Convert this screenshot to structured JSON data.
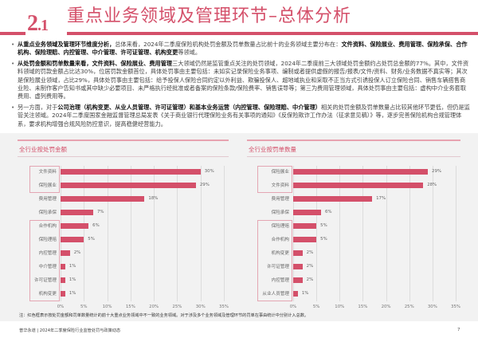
{
  "header": {
    "section_number": "2",
    "section_sub": ".1",
    "title": "重点业务领域及管理环节–总体分析"
  },
  "bullets": [
    {
      "segments": [
        {
          "text": "从重点业务领域及管理环节维度分析，",
          "bold": true
        },
        {
          "text": "总体来看，2024年二季度保险机构处罚金额及罚单数量占比前十的业务领域主要分布在：",
          "bold": false
        },
        {
          "text": "文件资料、保险展业、费用管理、保险承保、合作机构、保险理赔、内控管理、中介管理、许可证管理、机构变更",
          "bold": true
        },
        {
          "text": "等领域。",
          "bold": false
        }
      ]
    },
    {
      "segments": [
        {
          "text": "从处罚金额和罚单数量来看，文件资料、保险展业、费用管理",
          "bold": true
        },
        {
          "text": "三大领域仍然是监管重点关注的处罚领域，2024年二季度前三大领域处罚金额约占处罚总金额的77%。其中，文件资料领域的罚款金额占比达30%，位居罚款金额首位，具体处罚事由主要包括：未如实记录保险业务事项、编制或者提供虚假的报告/报表/文件/资料、财务/业务数据不真实等；其次是保险展业领域，占比29%，具体处罚事由主要包括：给予投保人保险合同约定以外利益、欺骗投保人、超地域执业和采取不正当方式引诱投保人订立保险合同、销售车辆搭售商业险、未制作客户告知书或其中缺少必要项目、未严格执行经批准或者备案的保险条款/保险费率、销售误导等；第三为费用管理领域，具体处罚事由主要包括：虚构中介业务套取费用、虚列费用等。",
          "bold": false
        }
      ]
    },
    {
      "segments": [
        {
          "text": "另一方面，对于",
          "bold": false
        },
        {
          "text": "公司治理（机构变更、从业人员管理、许可证管理）和基本业务运营（内控管理、保险理赔、中介管理）",
          "bold": true
        },
        {
          "text": "相关的处罚金额及罚单数量占比较其他环节更低，但仍是监管关注领域。2024年二季度国家金融监督管理总局发表《关于商业银行代理保险业务有关事项的通知》《反保险欺诈工作办法（征求意见稿）》等，逐步完善保险机构合规管理体系，要求机构增强合规风险防控意识，提高稳健经营能力。",
          "bold": false
        }
      ]
    }
  ],
  "chart_data": [
    {
      "type": "bar",
      "orientation": "horizontal",
      "title": "全行业按处罚金额",
      "categories": [
        "文件资料",
        "保险展业",
        "费用管理",
        "保险承保",
        "合作机构",
        "保险理赔",
        "内控管理",
        "中介管理",
        "许可证管理",
        "机构变更"
      ],
      "values": [
        30,
        29,
        18,
        7,
        6,
        5,
        2,
        1,
        1,
        1
      ],
      "value_labels": [
        "30%",
        "29%",
        "18%",
        "7%",
        "6%",
        "5%",
        "2%",
        "1%",
        "1%",
        "1%"
      ],
      "highlighted": [
        "文件资料",
        "保险展业",
        "合作机构",
        "保险理赔",
        "内控管理",
        "中介管理",
        "许可证管理",
        "机构变更"
      ],
      "xlim": [
        0,
        35
      ],
      "xticks": [
        "0%",
        "5%",
        "10%",
        "15%",
        "20%",
        "25%",
        "30%",
        "35%"
      ],
      "grid": true,
      "bar_color": "#d4506a"
    },
    {
      "type": "bar",
      "orientation": "horizontal",
      "title": "全行业按罚单数量",
      "categories": [
        "保险展业",
        "文件资料",
        "费用管理",
        "保险承保",
        "保险理赔",
        "合作机构",
        "机构变更",
        "许可证管理",
        "内控管理",
        "从业人员管理"
      ],
      "values": [
        29,
        28,
        17,
        6,
        5,
        5,
        2,
        2,
        2,
        1
      ],
      "value_labels": [
        "29%",
        "28%",
        "17%",
        "6%",
        "5%",
        "5%",
        "2%",
        "2%",
        "2%",
        "1%"
      ],
      "highlighted": [
        "保险展业",
        "文件资料",
        "保险理赔",
        "合作机构",
        "机构变更",
        "许可证管理",
        "内控管理",
        "从业人员管理"
      ],
      "xlim": [
        0,
        35
      ],
      "xticks": [
        "0%",
        "5%",
        "10%",
        "15%",
        "20%",
        "25%",
        "30%",
        "35%"
      ],
      "grid": true,
      "bar_color": "#d4506a"
    }
  ],
  "note": "注：红色框表示按处罚金额和罚单数量统计的前十大重点业务领域中不一致的业务领域。对于涉及多个业务领域及管理环节的罚单在事由统计中分别计入总数。",
  "footer": {
    "source": "普华永道 | 2024年二季度保险行业监管处罚与政策动态",
    "page_number": "7"
  },
  "colors": {
    "accent": "#d4506a",
    "chart_bg": "#f2f2f2",
    "highlight_box": "#e4a6b3"
  }
}
